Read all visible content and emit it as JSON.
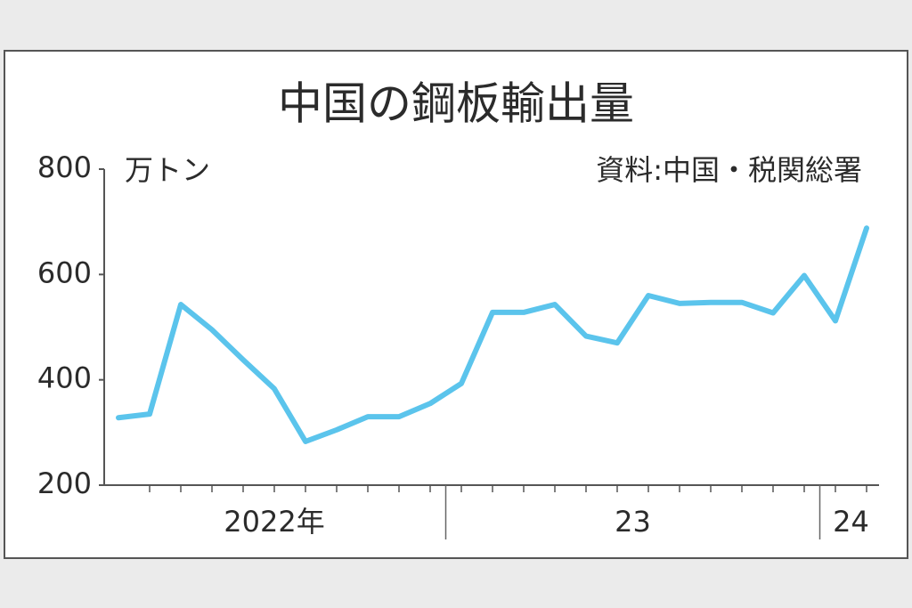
{
  "chart_data": {
    "type": "line",
    "title": "中国の鋼板輸出量",
    "y_label": "万トン",
    "source": "資料:中国・税関総署",
    "categories": [
      null,
      null,
      null,
      null,
      null,
      "2022年",
      null,
      null,
      null,
      null,
      null,
      null,
      null,
      null,
      null,
      null,
      "23",
      null,
      null,
      null,
      null,
      null,
      null,
      "24",
      null
    ],
    "series": [
      {
        "name": "鋼板輸出量",
        "color": "#5bc4ec",
        "values": [
          328,
          335,
          543,
          495,
          438,
          383,
          283,
          305,
          330,
          330,
          355,
          393,
          528,
          528,
          543,
          483,
          470,
          560,
          545,
          547,
          547,
          527,
          598,
          512,
          688
        ]
      }
    ],
    "ylim": [
      200,
      800
    ],
    "yticks": [
      200,
      400,
      600,
      800
    ],
    "grid": false
  }
}
